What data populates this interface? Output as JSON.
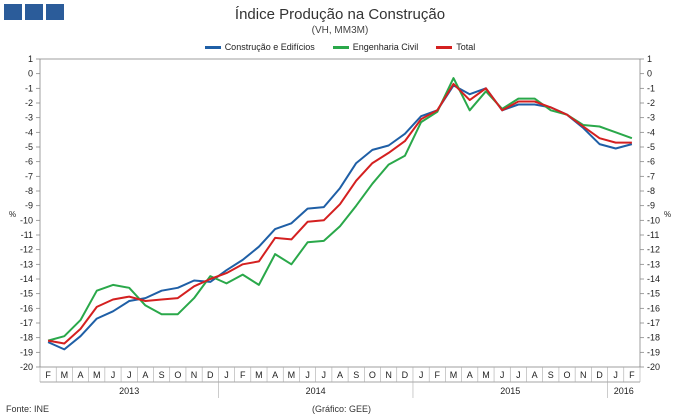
{
  "logo": {
    "name": "INE logo squares"
  },
  "chart_data": {
    "type": "line",
    "title": "Índice Produção na Construção",
    "subtitle": "(VH, MM3M)",
    "ylabel_left": "%",
    "ylabel_right": "%",
    "ylim": [
      -20,
      1
    ],
    "yticks": [
      1,
      0,
      -1,
      -2,
      -3,
      -4,
      -5,
      -6,
      -7,
      -8,
      -9,
      -10,
      -11,
      -12,
      -13,
      -14,
      -15,
      -16,
      -17,
      -18,
      -19,
      -20
    ],
    "month_labels": [
      "F",
      "M",
      "A",
      "M",
      "J",
      "J",
      "A",
      "S",
      "O",
      "N",
      "D",
      "J",
      "F",
      "M",
      "A",
      "M",
      "J",
      "J",
      "A",
      "S",
      "O",
      "N",
      "D",
      "J",
      "F",
      "M",
      "A",
      "M",
      "J",
      "J",
      "A",
      "S",
      "O",
      "N",
      "D",
      "J",
      "F"
    ],
    "year_labels": [
      {
        "label": "2013",
        "start": 0,
        "end": 10
      },
      {
        "label": "2014",
        "start": 11,
        "end": 22
      },
      {
        "label": "2015",
        "start": 23,
        "end": 34
      },
      {
        "label": "2016",
        "start": 35,
        "end": 36
      }
    ],
    "series": [
      {
        "name": "Construção e Edifícios",
        "color": "#1f5fa6",
        "values": [
          -18.3,
          -18.8,
          -17.9,
          -16.7,
          -16.2,
          -15.5,
          -15.3,
          -14.8,
          -14.6,
          -14.1,
          -14.2,
          -13.4,
          -12.7,
          -11.8,
          -10.6,
          -10.2,
          -9.2,
          -9.1,
          -7.8,
          -6.1,
          -5.2,
          -4.9,
          -4.1,
          -2.9,
          -2.5,
          -0.8,
          -1.4,
          -1.0,
          -2.5,
          -2.1,
          -2.1,
          -2.3,
          -2.8,
          -3.7,
          -4.8,
          -5.1,
          -4.8
        ]
      },
      {
        "name": "Engenharia Civil",
        "color": "#2aa84a",
        "values": [
          -18.2,
          -17.9,
          -16.8,
          -14.8,
          -14.4,
          -14.6,
          -15.8,
          -16.4,
          -16.4,
          -15.3,
          -13.8,
          -14.3,
          -13.7,
          -14.4,
          -12.3,
          -13.0,
          -11.5,
          -11.4,
          -10.4,
          -9.0,
          -7.5,
          -6.2,
          -5.6,
          -3.3,
          -2.6,
          -0.3,
          -2.5,
          -1.2,
          -2.4,
          -1.7,
          -1.7,
          -2.5,
          -2.8,
          -3.5,
          -3.6,
          -4.0,
          -4.4
        ]
      },
      {
        "name": "Total",
        "color": "#d42020",
        "values": [
          -18.2,
          -18.4,
          -17.4,
          -15.9,
          -15.4,
          -15.2,
          -15.5,
          -15.4,
          -15.3,
          -14.5,
          -14.0,
          -13.6,
          -13.0,
          -12.8,
          -11.2,
          -11.3,
          -10.1,
          -10.0,
          -8.9,
          -7.3,
          -6.1,
          -5.4,
          -4.6,
          -3.1,
          -2.5,
          -0.7,
          -1.8,
          -1.0,
          -2.5,
          -1.9,
          -1.9,
          -2.3,
          -2.8,
          -3.6,
          -4.4,
          -4.7,
          -4.7
        ]
      }
    ]
  },
  "footer": {
    "source": "Fonte: INE",
    "credit": "(Gráfico: GEE)"
  }
}
